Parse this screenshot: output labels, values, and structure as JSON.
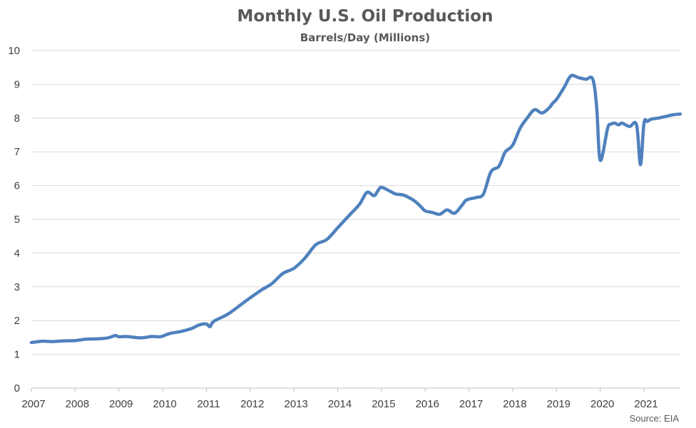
{
  "chart_data": {
    "type": "line",
    "title": "Monthly U.S. Oil Production",
    "subtitle": "Barrels/Day (Millions)",
    "xlabel": "",
    "ylabel": "",
    "source": "Source: EIA",
    "xlim": [
      2007,
      2021.83
    ],
    "ylim": [
      0,
      10
    ],
    "y_ticks": [
      0,
      1,
      2,
      3,
      4,
      5,
      6,
      7,
      8,
      9,
      10
    ],
    "x_ticks": [
      "2007",
      "2008",
      "2009",
      "2010",
      "2011",
      "2012",
      "2013",
      "2014",
      "2015",
      "2016",
      "2017",
      "2018",
      "2019",
      "2020",
      "2021"
    ],
    "grid": true,
    "legend": "none",
    "series": [
      {
        "color": "#4F81BD",
        "x": [
          2007.0,
          2007.25,
          2007.5,
          2007.75,
          2008.0,
          2008.25,
          2008.5,
          2008.75,
          2008.92,
          2009.0,
          2009.17,
          2009.5,
          2009.75,
          2009.92,
          2010.0,
          2010.17,
          2010.42,
          2010.67,
          2010.83,
          2011.0,
          2011.08,
          2011.17,
          2011.5,
          2011.92,
          2012.25,
          2012.5,
          2012.75,
          2013.0,
          2013.25,
          2013.5,
          2013.75,
          2014.0,
          2014.25,
          2014.5,
          2014.67,
          2014.83,
          2014.92,
          2015.0,
          2015.17,
          2015.33,
          2015.5,
          2015.75,
          2015.92,
          2016.0,
          2016.17,
          2016.33,
          2016.5,
          2016.67,
          2016.83,
          2016.92,
          2017.0,
          2017.17,
          2017.33,
          2017.5,
          2017.67,
          2017.75,
          2017.83,
          2018.0,
          2018.17,
          2018.33,
          2018.5,
          2018.67,
          2018.83,
          2018.92,
          2019.0,
          2019.17,
          2019.33,
          2019.5,
          2019.67,
          2019.83,
          2019.92,
          2020.0,
          2020.17,
          2020.25,
          2020.33,
          2020.42,
          2020.5,
          2020.67,
          2020.83,
          2020.92,
          2021.0,
          2021.08,
          2021.17,
          2021.33,
          2021.5,
          2021.67,
          2021.83
        ],
        "values": [
          1.35,
          1.39,
          1.38,
          1.4,
          1.41,
          1.45,
          1.46,
          1.49,
          1.56,
          1.52,
          1.53,
          1.49,
          1.53,
          1.52,
          1.54,
          1.62,
          1.68,
          1.77,
          1.87,
          1.9,
          1.82,
          1.98,
          2.2,
          2.6,
          2.9,
          3.1,
          3.4,
          3.55,
          3.85,
          4.25,
          4.4,
          4.75,
          5.1,
          5.45,
          5.8,
          5.7,
          5.85,
          5.95,
          5.85,
          5.75,
          5.72,
          5.55,
          5.35,
          5.25,
          5.2,
          5.15,
          5.28,
          5.18,
          5.4,
          5.55,
          5.6,
          5.65,
          5.75,
          6.4,
          6.55,
          6.75,
          7.0,
          7.2,
          7.7,
          8.0,
          8.25,
          8.15,
          8.3,
          8.45,
          8.55,
          8.9,
          9.25,
          9.2,
          9.15,
          9.15,
          8.3,
          6.75,
          7.7,
          7.82,
          7.85,
          7.8,
          7.85,
          7.75,
          7.8,
          6.62,
          7.85,
          7.9,
          7.97,
          8.0,
          8.05,
          8.1,
          8.12
        ]
      }
    ]
  }
}
